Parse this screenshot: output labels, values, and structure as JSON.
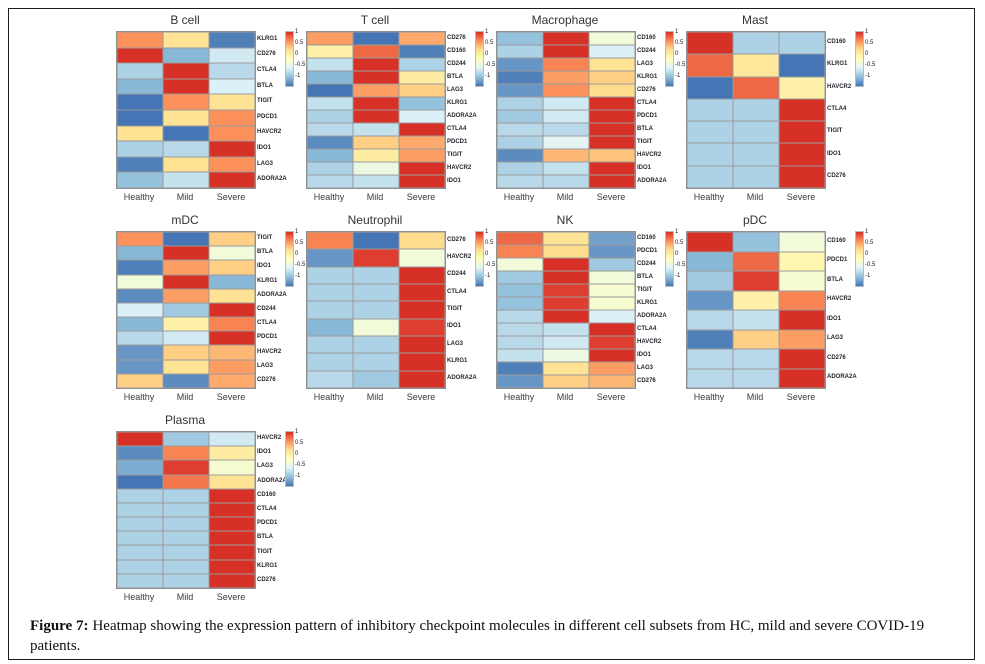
{
  "figure": {
    "caption_label": "Figure 7:",
    "caption_text": "Heatmap showing the expression pattern of inhibitory checkpoint molecules in different cell subsets from HC, mild and severe COVID-19 patients."
  },
  "columns": [
    "Healthy",
    "Mild",
    "Severe"
  ],
  "colorbar": {
    "ticks": [
      "1",
      "0.5",
      "0",
      "-0.5",
      "-1"
    ],
    "limits": [
      -1,
      1
    ],
    "palette_low_to_high": [
      "#4575b4",
      "#91bfdb",
      "#e0f3f8",
      "#ffffbf",
      "#fee090",
      "#fc8d59",
      "#d73027"
    ]
  },
  "chart_data": [
    {
      "type": "heatmap",
      "title": "B cell",
      "x": [
        "Healthy",
        "Mild",
        "Severe"
      ],
      "zlim": [
        -1,
        1
      ],
      "rows": [
        "KLRG1",
        "CD276",
        "CTLA4",
        "BTLA",
        "TIGIT",
        "PDCD1",
        "HAVCR2",
        "IDO1",
        "LAG3",
        "ADORA2A"
      ],
      "values": [
        [
          0.65,
          0.3,
          -0.95
        ],
        [
          1,
          -0.7,
          -0.4
        ],
        [
          -0.55,
          1,
          -0.5
        ],
        [
          -0.7,
          1,
          -0.35
        ],
        [
          -1,
          0.65,
          0.3
        ],
        [
          -1,
          0.3,
          0.65
        ],
        [
          0.3,
          -1,
          0.65
        ],
        [
          -0.55,
          -0.5,
          1
        ],
        [
          -0.95,
          0.3,
          0.65
        ],
        [
          -0.65,
          -0.45,
          1
        ]
      ]
    },
    {
      "type": "heatmap",
      "title": "T cell",
      "x": [
        "Healthy",
        "Mild",
        "Severe"
      ],
      "zlim": [
        -1,
        1
      ],
      "rows": [
        "CD276",
        "CD160",
        "CD244",
        "BTLA",
        "LAG3",
        "KLRG1",
        "ADORA2A",
        "CTLA4",
        "PDCD1",
        "TIGIT",
        "HAVCR2",
        "IDO1"
      ],
      "values": [
        [
          0.6,
          -1,
          0.55
        ],
        [
          0.15,
          0.8,
          -0.95
        ],
        [
          -0.45,
          1,
          -0.55
        ],
        [
          -0.7,
          1,
          0.2
        ],
        [
          -1,
          0.6,
          0.4
        ],
        [
          -0.45,
          1,
          -0.65
        ],
        [
          -0.55,
          1,
          -0.35
        ],
        [
          -0.5,
          -0.45,
          1
        ],
        [
          -0.9,
          0.4,
          0.55
        ],
        [
          -0.7,
          0.2,
          0.6
        ],
        [
          -0.55,
          -0.2,
          1
        ],
        [
          -0.5,
          -0.45,
          1
        ]
      ]
    },
    {
      "type": "heatmap",
      "title": "Macrophage",
      "x": [
        "Healthy",
        "Mild",
        "Severe"
      ],
      "zlim": [
        -1,
        1
      ],
      "rows": [
        "CD160",
        "CD244",
        "LAG3",
        "KLRG1",
        "CD276",
        "CTLA4",
        "PDCD1",
        "BTLA",
        "TIGIT",
        "HAVCR2",
        "IDO1",
        "ADORA2A"
      ],
      "values": [
        [
          -0.65,
          1,
          -0.15
        ],
        [
          -0.55,
          1,
          -0.35
        ],
        [
          -0.85,
          0.7,
          0.3
        ],
        [
          -0.95,
          0.6,
          0.4
        ],
        [
          -0.85,
          0.65,
          0.35
        ],
        [
          -0.55,
          -0.4,
          1
        ],
        [
          -0.6,
          -0.4,
          1
        ],
        [
          -0.5,
          -0.5,
          1
        ],
        [
          -0.55,
          -0.3,
          1
        ],
        [
          -0.9,
          0.5,
          0.45
        ],
        [
          -0.55,
          -0.45,
          1
        ],
        [
          -0.5,
          -0.5,
          1
        ]
      ]
    },
    {
      "type": "heatmap",
      "title": "Mast",
      "x": [
        "Healthy",
        "Mild",
        "Severe"
      ],
      "zlim": [
        -1,
        1
      ],
      "rows": [
        "CD160",
        "KLRG1",
        "HAVCR2",
        "CTLA4",
        "TIGIT",
        "IDO1",
        "CD276"
      ],
      "values": [
        [
          1,
          -0.55,
          -0.55
        ],
        [
          0.8,
          0.25,
          -1
        ],
        [
          -1,
          0.8,
          0.15
        ],
        [
          -0.55,
          -0.55,
          1
        ],
        [
          -0.55,
          -0.55,
          1
        ],
        [
          -0.55,
          -0.55,
          1
        ],
        [
          -0.55,
          -0.55,
          1
        ]
      ]
    },
    {
      "type": "heatmap",
      "title": "mDC",
      "x": [
        "Healthy",
        "Mild",
        "Severe"
      ],
      "zlim": [
        -1,
        1
      ],
      "rows": [
        "TIGIT",
        "BTLA",
        "IDO1",
        "KLRG1",
        "ADORA2A",
        "CD244",
        "CTLA4",
        "PDCD1",
        "HAVCR2",
        "LAG3",
        "CD276"
      ],
      "values": [
        [
          0.65,
          -1,
          0.4
        ],
        [
          -0.7,
          1,
          -0.15
        ],
        [
          -0.95,
          0.6,
          0.4
        ],
        [
          -0.15,
          1,
          -0.7
        ],
        [
          -0.9,
          0.6,
          0.3
        ],
        [
          -0.35,
          -0.6,
          1
        ],
        [
          -0.7,
          0.15,
          0.7
        ],
        [
          -0.5,
          -0.4,
          1
        ],
        [
          -0.85,
          0.4,
          0.5
        ],
        [
          -0.85,
          0.3,
          0.6
        ],
        [
          0.4,
          -0.9,
          0.55
        ]
      ]
    },
    {
      "type": "heatmap",
      "title": "Neutrophil",
      "x": [
        "Healthy",
        "Mild",
        "Severe"
      ],
      "zlim": [
        -1,
        1
      ],
      "rows": [
        "CD276",
        "HAVCR2",
        "CD244",
        "CTLA4",
        "TIGIT",
        "IDO1",
        "LAG3",
        "KLRG1",
        "ADORA2A"
      ],
      "values": [
        [
          0.7,
          -1,
          0.35
        ],
        [
          -0.85,
          0.95,
          -0.15
        ],
        [
          -0.55,
          -0.55,
          1
        ],
        [
          -0.55,
          -0.55,
          1
        ],
        [
          -0.55,
          -0.55,
          1
        ],
        [
          -0.7,
          -0.15,
          0.95
        ],
        [
          -0.55,
          -0.55,
          1
        ],
        [
          -0.55,
          -0.55,
          1
        ],
        [
          -0.5,
          -0.6,
          1
        ]
      ]
    },
    {
      "type": "heatmap",
      "title": "NK",
      "x": [
        "Healthy",
        "Mild",
        "Severe"
      ],
      "zlim": [
        -1,
        1
      ],
      "rows": [
        "CD160",
        "PDCD1",
        "CD244",
        "BTLA",
        "TIGIT",
        "KLRG1",
        "ADORA2A",
        "CTLA4",
        "HAVCR2",
        "IDO1",
        "LAG3",
        "CD276"
      ],
      "values": [
        [
          0.8,
          0.3,
          -0.8
        ],
        [
          0.7,
          0.35,
          -0.85
        ],
        [
          -0.15,
          1,
          -0.6
        ],
        [
          -0.6,
          1,
          -0.15
        ],
        [
          -0.65,
          0.95,
          -0.1
        ],
        [
          -0.65,
          0.95,
          -0.1
        ],
        [
          -0.5,
          1,
          -0.35
        ],
        [
          -0.5,
          -0.45,
          1
        ],
        [
          -0.5,
          -0.4,
          0.95
        ],
        [
          -0.45,
          -0.2,
          1
        ],
        [
          -0.95,
          0.3,
          0.6
        ],
        [
          -0.85,
          0.4,
          0.5
        ]
      ]
    },
    {
      "type": "heatmap",
      "title": "pDC",
      "x": [
        "Healthy",
        "Mild",
        "Severe"
      ],
      "zlim": [
        -1,
        1
      ],
      "rows": [
        "CD160",
        "PDCD1",
        "BTLA",
        "HAVCR2",
        "IDO1",
        "LAG3",
        "CD276",
        "ADORA2A"
      ],
      "values": [
        [
          1,
          -0.65,
          -0.15
        ],
        [
          -0.7,
          0.8,
          0.1
        ],
        [
          -0.6,
          0.95,
          -0.1
        ],
        [
          -0.85,
          0.15,
          0.7
        ],
        [
          -0.5,
          -0.45,
          1
        ],
        [
          -0.95,
          0.4,
          0.6
        ],
        [
          -0.5,
          -0.5,
          1
        ],
        [
          -0.5,
          -0.5,
          1
        ]
      ]
    },
    {
      "type": "heatmap",
      "title": "Plasma",
      "x": [
        "Healthy",
        "Mild",
        "Severe"
      ],
      "zlim": [
        -1,
        1
      ],
      "rows": [
        "HAVCR2",
        "IDO1",
        "LAG3",
        "ADORA2A",
        "CD160",
        "CTLA4",
        "PDCD1",
        "BTLA",
        "TIGIT",
        "KLRG1",
        "CD276"
      ],
      "values": [
        [
          1,
          -0.6,
          -0.4
        ],
        [
          -0.9,
          0.7,
          0.2
        ],
        [
          -0.75,
          0.95,
          -0.1
        ],
        [
          -1,
          0.75,
          0.3
        ],
        [
          -0.55,
          -0.55,
          1
        ],
        [
          -0.55,
          -0.55,
          1
        ],
        [
          -0.55,
          -0.55,
          1
        ],
        [
          -0.55,
          -0.55,
          1
        ],
        [
          -0.55,
          -0.55,
          1
        ],
        [
          -0.55,
          -0.55,
          1
        ],
        [
          -0.55,
          -0.55,
          1
        ]
      ]
    }
  ]
}
